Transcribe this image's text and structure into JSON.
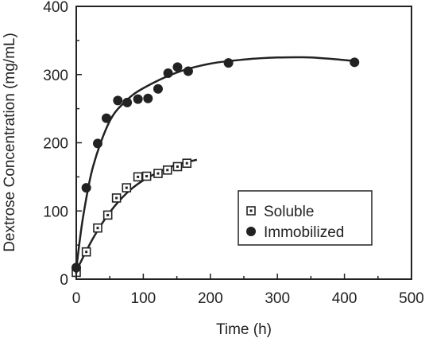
{
  "chart_data": {
    "type": "scatter",
    "title": "",
    "xlabel": "Time (h)",
    "ylabel": "Dextrose Concentration (mg/mL)",
    "xlim": [
      0,
      500
    ],
    "ylim": [
      0,
      400
    ],
    "xticks": [
      0,
      100,
      200,
      300,
      400,
      500
    ],
    "yticks": [
      0,
      100,
      200,
      300,
      400
    ],
    "grid": false,
    "legend_position": "lower-right",
    "series": [
      {
        "name": "Soluble",
        "marker": "open-square",
        "color": "#222222",
        "points": [
          {
            "x": 0,
            "y": 10
          },
          {
            "x": 15,
            "y": 40
          },
          {
            "x": 32,
            "y": 75
          },
          {
            "x": 47,
            "y": 94
          },
          {
            "x": 60,
            "y": 119
          },
          {
            "x": 75,
            "y": 134
          },
          {
            "x": 92,
            "y": 150
          },
          {
            "x": 105,
            "y": 151
          },
          {
            "x": 122,
            "y": 155
          },
          {
            "x": 136,
            "y": 160
          },
          {
            "x": 151,
            "y": 165
          },
          {
            "x": 165,
            "y": 170
          }
        ],
        "fit_curve": [
          {
            "x": 0,
            "y": 12
          },
          {
            "x": 25,
            "y": 60
          },
          {
            "x": 50,
            "y": 98
          },
          {
            "x": 75,
            "y": 126
          },
          {
            "x": 100,
            "y": 145
          },
          {
            "x": 125,
            "y": 158
          },
          {
            "x": 150,
            "y": 168
          },
          {
            "x": 180,
            "y": 175
          }
        ]
      },
      {
        "name": "Immobilized",
        "marker": "filled-circle",
        "color": "#222222",
        "points": [
          {
            "x": 0,
            "y": 17
          },
          {
            "x": 15,
            "y": 134
          },
          {
            "x": 32,
            "y": 199
          },
          {
            "x": 45,
            "y": 236
          },
          {
            "x": 62,
            "y": 262
          },
          {
            "x": 76,
            "y": 259
          },
          {
            "x": 92,
            "y": 264
          },
          {
            "x": 107,
            "y": 265
          },
          {
            "x": 122,
            "y": 279
          },
          {
            "x": 137,
            "y": 302
          },
          {
            "x": 151,
            "y": 311
          },
          {
            "x": 167,
            "y": 305
          },
          {
            "x": 227,
            "y": 317
          },
          {
            "x": 415,
            "y": 318
          }
        ],
        "fit_curve": [
          {
            "x": 0,
            "y": 15
          },
          {
            "x": 10,
            "y": 90
          },
          {
            "x": 25,
            "y": 165
          },
          {
            "x": 50,
            "y": 232
          },
          {
            "x": 75,
            "y": 262
          },
          {
            "x": 100,
            "y": 280
          },
          {
            "x": 150,
            "y": 303
          },
          {
            "x": 200,
            "y": 316
          },
          {
            "x": 250,
            "y": 322
          },
          {
            "x": 300,
            "y": 325
          },
          {
            "x": 350,
            "y": 325
          },
          {
            "x": 415,
            "y": 320
          }
        ]
      }
    ]
  }
}
